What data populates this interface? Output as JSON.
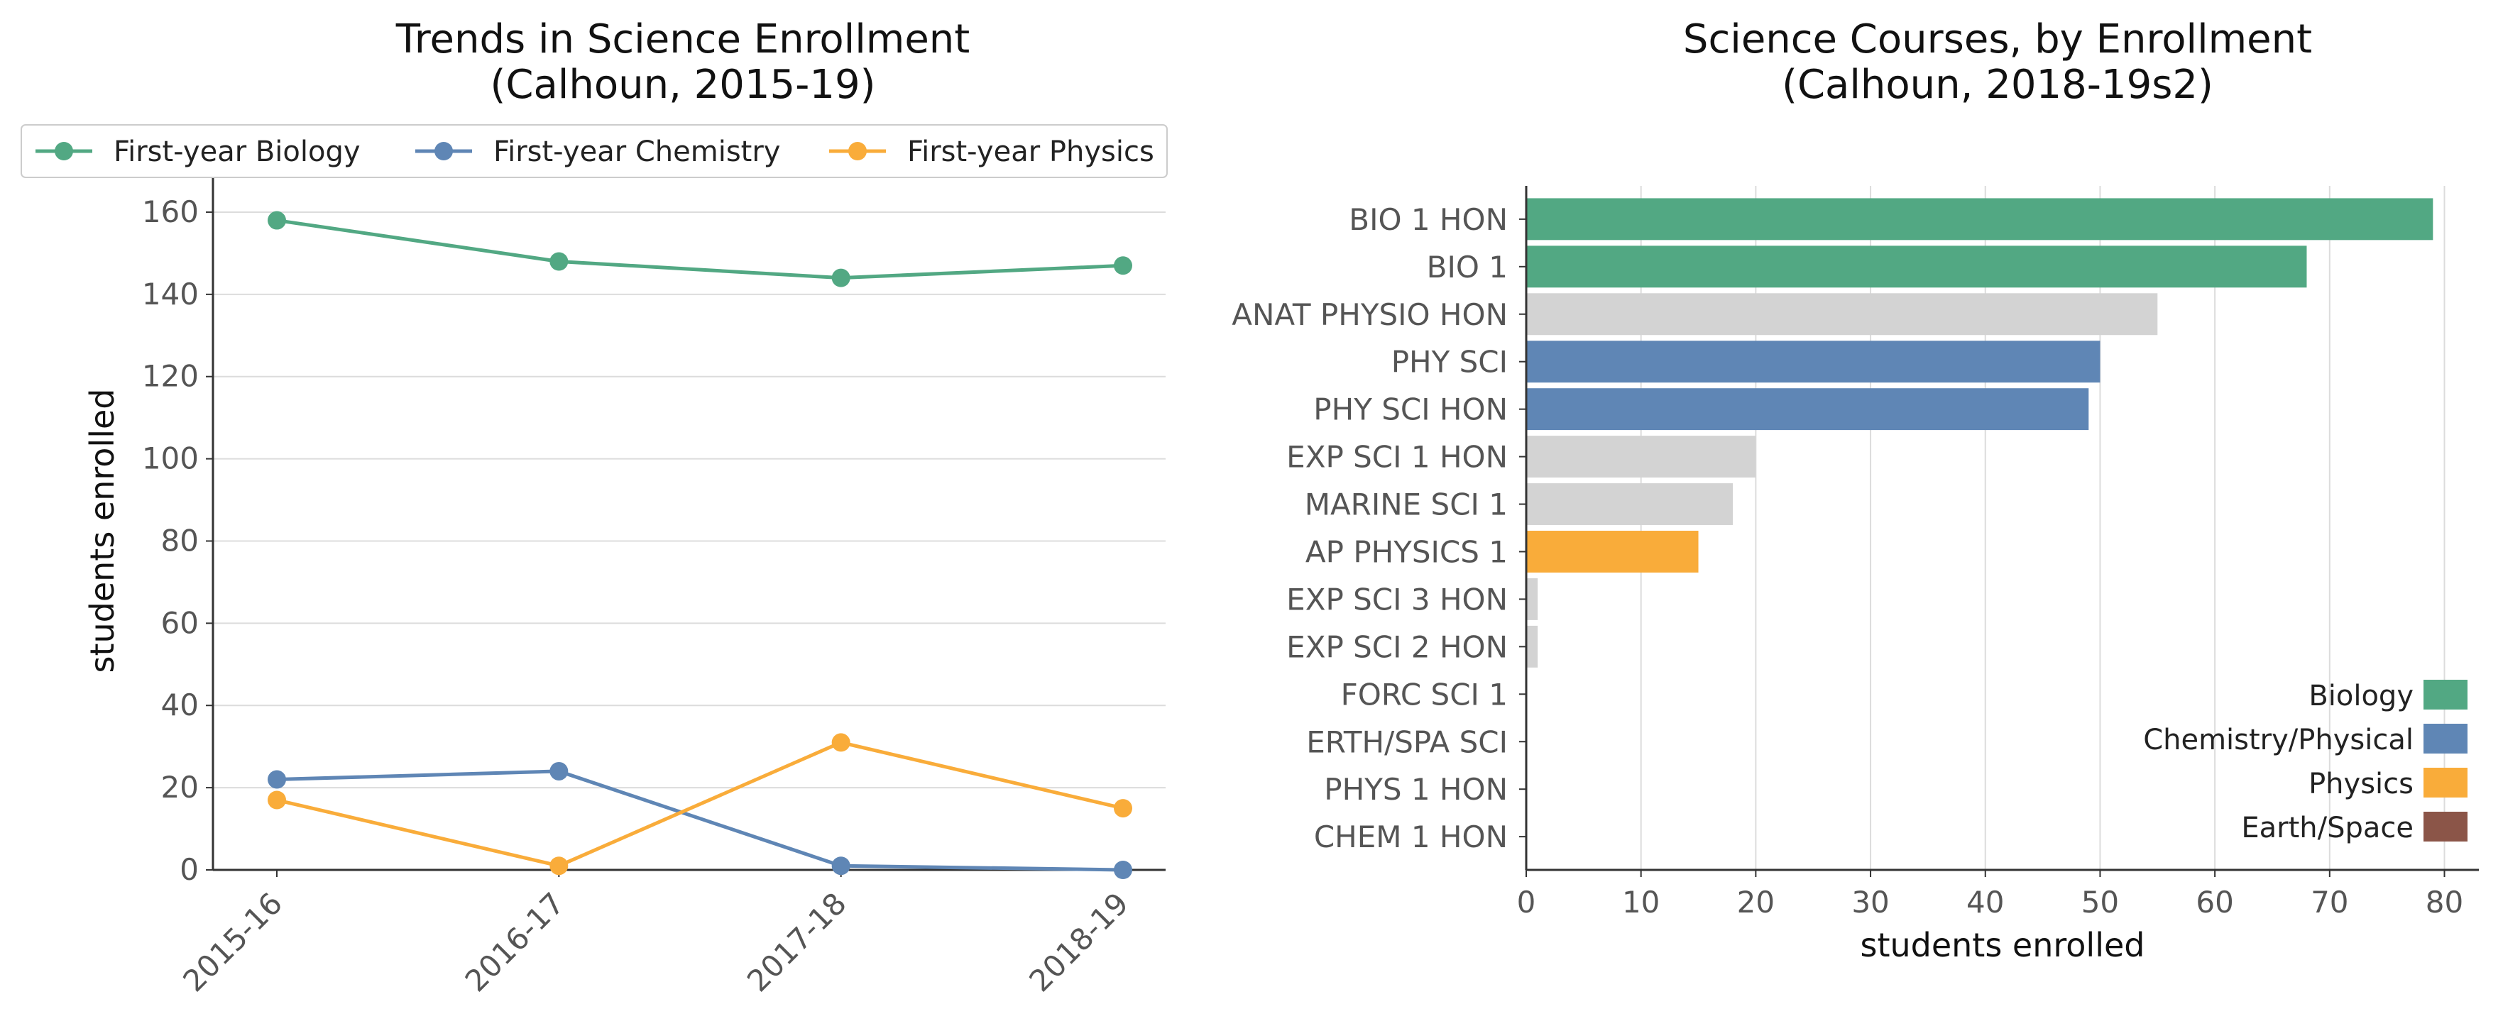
{
  "chart_data": [
    {
      "type": "line",
      "title": [
        "Trends in Science Enrollment",
        "(Calhoun, 2015-19)"
      ],
      "xlabel": "",
      "ylabel": "students enrolled",
      "categories": [
        "2015-16",
        "2016-17",
        "2017-18",
        "2018-19"
      ],
      "ylim": [
        0,
        165
      ],
      "yticks": [
        0,
        20,
        40,
        60,
        80,
        100,
        120,
        140,
        160
      ],
      "grid": "horizontal",
      "legend_position": "top",
      "series": [
        {
          "name": "First-year Biology",
          "color": "#52a883",
          "values": [
            158,
            148,
            144,
            147
          ]
        },
        {
          "name": "First-year Chemistry",
          "color": "#5f86b5",
          "values": [
            22,
            24,
            1,
            0
          ]
        },
        {
          "name": "First-year Physics",
          "color": "#f9ac3a",
          "values": [
            17,
            1,
            31,
            15
          ]
        }
      ]
    },
    {
      "type": "bar",
      "orientation": "horizontal",
      "title": [
        "Science Courses, by Enrollment",
        "(Calhoun, 2018-19s2)"
      ],
      "xlabel": "students enrolled",
      "ylabel": "",
      "xlim": [
        0,
        83
      ],
      "xticks": [
        0,
        10,
        20,
        30,
        40,
        50,
        60,
        70,
        80
      ],
      "grid": "vertical",
      "legend_position": "lower-right",
      "categories": [
        "BIO 1 HON",
        "BIO 1",
        "ANAT PHYSIO HON",
        "PHY SCI",
        "PHY SCI HON",
        "EXP SCI 1 HON",
        "MARINE SCI 1",
        "AP PHYSICS 1",
        "EXP SCI 3 HON",
        "EXP SCI 2 HON",
        "FORC SCI 1",
        "ERTH/SPA SCI",
        "PHYS 1 HON",
        "CHEM 1 HON"
      ],
      "values": [
        79,
        68,
        55,
        50,
        49,
        20,
        18,
        15,
        1,
        1,
        0,
        0,
        0,
        0
      ],
      "groups": [
        "Biology",
        "Biology",
        "Other",
        "Chemistry/Physical",
        "Chemistry/Physical",
        "Other",
        "Other",
        "Physics",
        "Other",
        "Other",
        "Other",
        "Other",
        "Other",
        "Other"
      ],
      "group_colors": {
        "Biology": "#52a883",
        "Chemistry/Physical": "#5f86b5",
        "Physics": "#f9ac3a",
        "Earth/Space": "#8b5548",
        "Other": "#d3d3d3"
      },
      "legend": [
        "Biology",
        "Chemistry/Physical",
        "Physics",
        "Earth/Space"
      ]
    }
  ]
}
